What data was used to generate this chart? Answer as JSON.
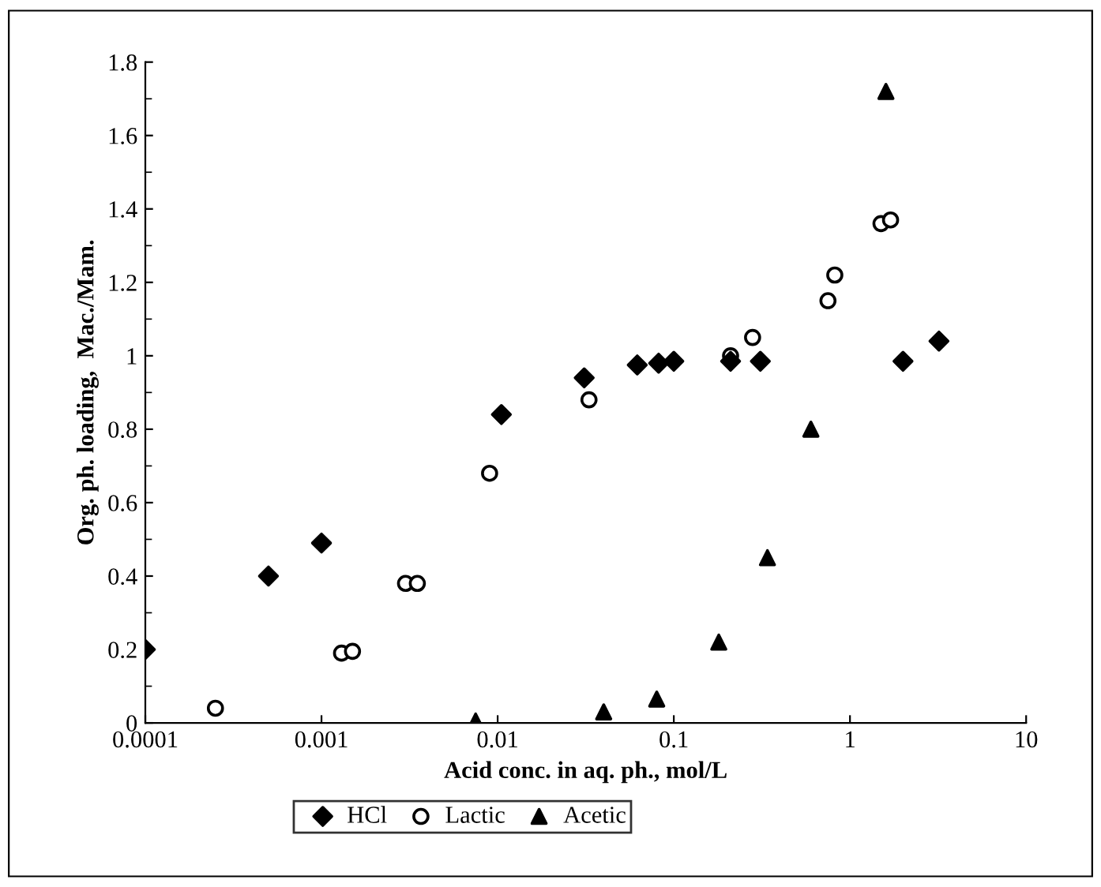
{
  "chart_data": {
    "type": "scatter",
    "xlabel": "Acid conc. in aq. ph., mol/L",
    "ylabel": "Org. ph. loading,  Mac./Mam.",
    "log": "x",
    "xlim": [
      0.0001,
      10
    ],
    "xticks": [
      {
        "value": 0.0001,
        "label": "0.0001"
      },
      {
        "value": 0.001,
        "label": "0.001"
      },
      {
        "value": 0.01,
        "label": "0.01"
      },
      {
        "value": 0.1,
        "label": "0.1"
      },
      {
        "value": 1,
        "label": "1"
      },
      {
        "value": 10,
        "label": "10"
      }
    ],
    "ylim": [
      0,
      1.8
    ],
    "yticks": [
      0,
      0.2,
      0.4,
      0.6,
      0.8,
      1,
      1.2,
      1.4,
      1.6,
      1.8
    ],
    "grid": false,
    "legend": "bottom",
    "series": [
      {
        "name": "HCl",
        "color": "#000000",
        "marker": "diamond",
        "x": [
          0.0001,
          0.0005,
          0.001,
          0.0105,
          0.031,
          0.062,
          0.082,
          0.1,
          0.21,
          0.31,
          2.0,
          3.2
        ],
        "values": [
          0.2,
          0.4,
          0.49,
          0.84,
          0.94,
          0.975,
          0.98,
          0.985,
          0.985,
          0.985,
          0.985,
          1.04
        ]
      },
      {
        "name": "Lactic",
        "color": "#000000",
        "marker": "circle",
        "x": [
          0.00025,
          0.0013,
          0.0015,
          0.003,
          0.0035,
          0.009,
          0.033,
          0.21,
          0.28,
          0.75,
          0.82,
          1.5,
          1.7
        ],
        "values": [
          0.04,
          0.19,
          0.195,
          0.38,
          0.38,
          0.68,
          0.88,
          1.0,
          1.05,
          1.15,
          1.22,
          1.36,
          1.37
        ]
      },
      {
        "name": "Acetic",
        "color": "#000000",
        "marker": "triangle",
        "x": [
          0.0075,
          0.04,
          0.08,
          0.18,
          0.34,
          0.6,
          1.6
        ],
        "values": [
          0.005,
          0.03,
          0.065,
          0.22,
          0.45,
          0.8,
          1.72
        ]
      }
    ]
  }
}
